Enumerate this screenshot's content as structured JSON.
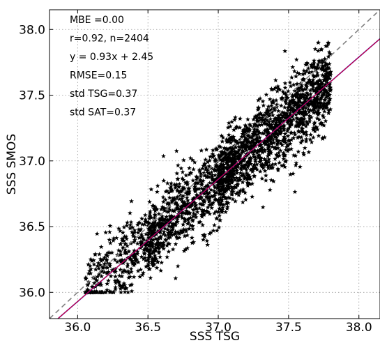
{
  "chart_data": {
    "type": "scatter",
    "title": "",
    "xlabel": "SSS TSG",
    "ylabel": "SSS SMOS",
    "xlim": [
      35.8,
      38.15
    ],
    "ylim": [
      35.8,
      38.15
    ],
    "xticks": [
      "36.0",
      "36.5",
      "37.0",
      "37.5",
      "38.0"
    ],
    "yticks": [
      "36.0",
      "36.5",
      "37.0",
      "37.5",
      "38.0"
    ],
    "grid": true,
    "marker": "star",
    "point_count": 2404,
    "cluster": {
      "x_range": [
        36.05,
        37.8
      ],
      "y_range": [
        36.0,
        37.9
      ],
      "slope": 0.93,
      "intercept": 2.45,
      "rmse": 0.15,
      "std_x": 0.37,
      "std_y": 0.37
    },
    "lines": [
      {
        "style": "one-to-one",
        "slope": 1.0,
        "intercept": 0.0,
        "color": "#808080",
        "dash": "dashed"
      },
      {
        "style": "regression",
        "slope": 0.93,
        "intercept": 2.45,
        "color": "#0000ff",
        "dash": "solid"
      },
      {
        "style": "fit-red",
        "slope": 0.93,
        "intercept": 2.45,
        "color": "#ff0000",
        "dash": "solid"
      }
    ],
    "stats": [
      {
        "text": "MBE =0.00",
        "color": "#000000"
      },
      {
        "text": "r=0.92, n=2404",
        "color": "#000000"
      },
      {
        "text": "y = 0.93x + 2.45",
        "color": "#0000ff"
      },
      {
        "text": "RMSE=0.15",
        "color": "#000000"
      },
      {
        "text": "std TSG=0.37",
        "color": "#000000"
      },
      {
        "text": "std SAT=0.37",
        "color": "#000000"
      }
    ]
  }
}
